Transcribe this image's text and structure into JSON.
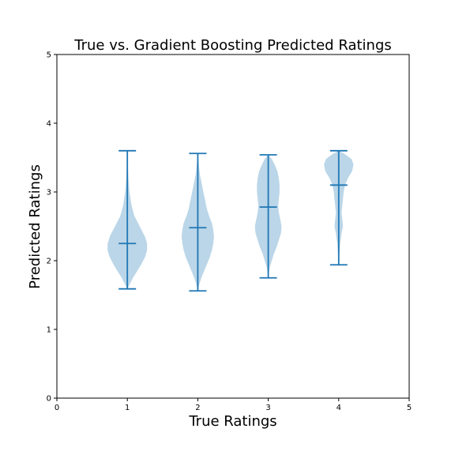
{
  "chart_data": {
    "type": "violin",
    "title": "True vs. Gradient Boosting Predicted Ratings",
    "xlabel": "True Ratings",
    "ylabel": "Predicted Ratings",
    "xlim": [
      0,
      5
    ],
    "ylim": [
      0,
      5
    ],
    "xticks": [
      "0",
      "1",
      "2",
      "3",
      "4",
      "5"
    ],
    "yticks": [
      "0",
      "1",
      "2",
      "3",
      "4",
      "5"
    ],
    "grid": false,
    "colors": {
      "body": "#1f77b4",
      "body_opacity": 0.3,
      "lines": "#1f77b4"
    },
    "violins": [
      {
        "x": 1,
        "min": 1.59,
        "max": 3.6,
        "mean": 2.25,
        "profile": [
          [
            1.59,
            0.0
          ],
          [
            1.65,
            0.03
          ],
          [
            1.75,
            0.08
          ],
          [
            1.85,
            0.14
          ],
          [
            1.95,
            0.2
          ],
          [
            2.05,
            0.25
          ],
          [
            2.15,
            0.28
          ],
          [
            2.25,
            0.28
          ],
          [
            2.35,
            0.25
          ],
          [
            2.45,
            0.2
          ],
          [
            2.55,
            0.15
          ],
          [
            2.65,
            0.1
          ],
          [
            2.8,
            0.06
          ],
          [
            3.0,
            0.03
          ],
          [
            3.2,
            0.015
          ],
          [
            3.4,
            0.007
          ],
          [
            3.6,
            0.0
          ]
        ]
      },
      {
        "x": 2,
        "min": 1.56,
        "max": 3.56,
        "mean": 2.48,
        "profile": [
          [
            1.56,
            0.0
          ],
          [
            1.65,
            0.02
          ],
          [
            1.75,
            0.05
          ],
          [
            1.85,
            0.09
          ],
          [
            1.95,
            0.13
          ],
          [
            2.05,
            0.17
          ],
          [
            2.15,
            0.2
          ],
          [
            2.25,
            0.22
          ],
          [
            2.35,
            0.23
          ],
          [
            2.45,
            0.22
          ],
          [
            2.55,
            0.2
          ],
          [
            2.65,
            0.16
          ],
          [
            2.75,
            0.13
          ],
          [
            2.85,
            0.11
          ],
          [
            2.95,
            0.09
          ],
          [
            3.05,
            0.07
          ],
          [
            3.15,
            0.05
          ],
          [
            3.25,
            0.03
          ],
          [
            3.4,
            0.015
          ],
          [
            3.56,
            0.0
          ]
        ]
      },
      {
        "x": 3,
        "min": 1.75,
        "max": 3.54,
        "mean": 2.78,
        "profile": [
          [
            1.75,
            0.0
          ],
          [
            1.9,
            0.02
          ],
          [
            2.0,
            0.05
          ],
          [
            2.1,
            0.08
          ],
          [
            2.2,
            0.12
          ],
          [
            2.3,
            0.15
          ],
          [
            2.4,
            0.18
          ],
          [
            2.5,
            0.19
          ],
          [
            2.6,
            0.17
          ],
          [
            2.7,
            0.15
          ],
          [
            2.8,
            0.14
          ],
          [
            2.9,
            0.15
          ],
          [
            3.0,
            0.16
          ],
          [
            3.1,
            0.16
          ],
          [
            3.2,
            0.15
          ],
          [
            3.3,
            0.13
          ],
          [
            3.4,
            0.09
          ],
          [
            3.48,
            0.05
          ],
          [
            3.54,
            0.0
          ]
        ]
      },
      {
        "x": 4,
        "min": 1.94,
        "max": 3.6,
        "mean": 3.1,
        "profile": [
          [
            1.94,
            0.0
          ],
          [
            2.1,
            0.01
          ],
          [
            2.25,
            0.02
          ],
          [
            2.4,
            0.04
          ],
          [
            2.5,
            0.06
          ],
          [
            2.6,
            0.05
          ],
          [
            2.7,
            0.04
          ],
          [
            2.8,
            0.05
          ],
          [
            2.9,
            0.06
          ],
          [
            3.0,
            0.07
          ],
          [
            3.1,
            0.09
          ],
          [
            3.2,
            0.13
          ],
          [
            3.3,
            0.19
          ],
          [
            3.4,
            0.21
          ],
          [
            3.48,
            0.18
          ],
          [
            3.55,
            0.09
          ],
          [
            3.6,
            0.0
          ]
        ]
      }
    ]
  }
}
